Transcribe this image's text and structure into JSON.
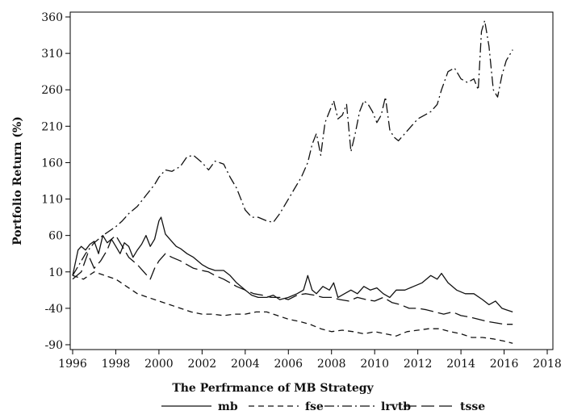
{
  "chart_data": {
    "type": "line",
    "title": "",
    "xlabel": "The Perfrmance of MB Strategy",
    "ylabel": "Portfolio Return (%)",
    "xlim": [
      1996,
      2018
    ],
    "ylim": [
      -90,
      360
    ],
    "x_ticks": [
      1996,
      1998,
      2000,
      2002,
      2004,
      2006,
      2008,
      2010,
      2012,
      2014,
      2016,
      2018
    ],
    "y_ticks": [
      -90,
      -40,
      10,
      60,
      110,
      160,
      210,
      260,
      310,
      360
    ],
    "grid": false,
    "legend_position": "bottom",
    "series": [
      {
        "name": "mb",
        "dash": "solid",
        "x": [
          1996.0,
          1996.25,
          1996.4,
          1996.6,
          1996.8,
          1997.0,
          1997.2,
          1997.4,
          1997.6,
          1997.8,
          1998.0,
          1998.2,
          1998.4,
          1998.6,
          1998.8,
          1999.0,
          1999.2,
          1999.4,
          1999.6,
          1999.8,
          2000.0,
          2000.1,
          2000.3,
          2000.5,
          2000.8,
          2001.0,
          2001.3,
          2001.6,
          2002.0,
          2002.3,
          2002.6,
          2003.0,
          2003.3,
          2003.6,
          2004.0,
          2004.3,
          2004.6,
          2005.0,
          2005.3,
          2005.6,
          2006.0,
          2006.4,
          2006.7,
          2006.9,
          2007.1,
          2007.3,
          2007.6,
          2007.9,
          2008.1,
          2008.3,
          2008.6,
          2008.9,
          2009.2,
          2009.5,
          2009.8,
          2010.1,
          2010.4,
          2010.7,
          2011.0,
          2011.4,
          2011.8,
          2012.2,
          2012.6,
          2012.9,
          2013.1,
          2013.4,
          2013.8,
          2014.2,
          2014.6,
          2015.0,
          2015.3,
          2015.6,
          2015.9,
          2016.1,
          2016.4
        ],
        "y": [
          5,
          40,
          45,
          40,
          48,
          52,
          35,
          60,
          50,
          55,
          45,
          35,
          50,
          45,
          30,
          40,
          48,
          60,
          45,
          55,
          80,
          85,
          62,
          55,
          45,
          42,
          35,
          30,
          20,
          15,
          12,
          12,
          5,
          -5,
          -15,
          -22,
          -25,
          -25,
          -22,
          -28,
          -25,
          -20,
          -15,
          5,
          -15,
          -20,
          -10,
          -15,
          -5,
          -25,
          -20,
          -15,
          -20,
          -10,
          -15,
          -12,
          -20,
          -25,
          -15,
          -15,
          -10,
          -5,
          5,
          0,
          8,
          -5,
          -15,
          -20,
          -20,
          -28,
          -35,
          -30,
          -40,
          -42,
          -45
        ]
      },
      {
        "name": "fse",
        "dash": "dashed",
        "x": [
          1996.0,
          1996.5,
          1997.0,
          1997.5,
          1998.0,
          1998.5,
          1999.0,
          1999.5,
          2000.0,
          2000.5,
          2001.0,
          2001.5,
          2002.0,
          2002.5,
          2003.0,
          2003.5,
          2004.0,
          2004.5,
          2005.0,
          2005.5,
          2006.0,
          2006.5,
          2007.0,
          2007.5,
          2008.0,
          2008.5,
          2009.0,
          2009.5,
          2010.0,
          2010.5,
          2011.0,
          2011.5,
          2012.0,
          2012.5,
          2013.0,
          2013.5,
          2014.0,
          2014.5,
          2015.0,
          2015.5,
          2016.0,
          2016.4
        ],
        "y": [
          5,
          0,
          10,
          5,
          0,
          -10,
          -20,
          -25,
          -30,
          -35,
          -40,
          -45,
          -48,
          -48,
          -50,
          -48,
          -48,
          -45,
          -45,
          -50,
          -55,
          -58,
          -62,
          -68,
          -72,
          -70,
          -72,
          -75,
          -72,
          -75,
          -78,
          -72,
          -70,
          -68,
          -68,
          -72,
          -75,
          -80,
          -80,
          -82,
          -85,
          -88
        ]
      },
      {
        "name": "lrvtb",
        "dash": "dashdot",
        "x": [
          1996.0,
          1996.3,
          1996.6,
          1997.0,
          1997.4,
          1997.8,
          1998.0,
          1998.3,
          1998.6,
          1999.0,
          1999.4,
          1999.8,
          2000.0,
          2000.3,
          2000.6,
          2001.0,
          2001.3,
          2001.6,
          2002.0,
          2002.3,
          2002.6,
          2003.0,
          2003.3,
          2003.6,
          2004.0,
          2004.3,
          2004.6,
          2005.0,
          2005.3,
          2005.6,
          2006.0,
          2006.3,
          2006.6,
          2006.9,
          2007.1,
          2007.3,
          2007.5,
          2007.7,
          2007.9,
          2008.1,
          2008.3,
          2008.5,
          2008.7,
          2008.9,
          2009.1,
          2009.3,
          2009.5,
          2009.7,
          2009.9,
          2010.1,
          2010.3,
          2010.5,
          2010.7,
          2010.9,
          2011.1,
          2011.4,
          2011.7,
          2012.0,
          2012.3,
          2012.6,
          2012.9,
          2013.1,
          2013.4,
          2013.7,
          2014.0,
          2014.3,
          2014.6,
          2014.8,
          2014.95,
          2015.1,
          2015.3,
          2015.5,
          2015.7,
          2015.9,
          2016.1,
          2016.4
        ],
        "y": [
          5,
          20,
          35,
          50,
          60,
          68,
          72,
          80,
          90,
          100,
          115,
          130,
          140,
          150,
          148,
          155,
          168,
          170,
          160,
          150,
          162,
          158,
          140,
          125,
          95,
          85,
          85,
          80,
          78,
          90,
          110,
          125,
          140,
          160,
          185,
          200,
          170,
          215,
          230,
          245,
          220,
          225,
          240,
          175,
          200,
          230,
          245,
          240,
          230,
          215,
          225,
          250,
          205,
          195,
          190,
          200,
          210,
          220,
          225,
          230,
          240,
          260,
          285,
          290,
          275,
          270,
          275,
          260,
          340,
          355,
          320,
          260,
          250,
          280,
          300,
          315
        ]
      },
      {
        "name": "tsse",
        "dash": "longdash",
        "x": [
          1996.0,
          1996.4,
          1996.7,
          1997.0,
          1997.3,
          1997.6,
          1997.8,
          1998.0,
          1998.3,
          1998.6,
          1999.0,
          1999.3,
          1999.6,
          1999.8,
          2000.0,
          2000.3,
          2000.6,
          2001.0,
          2001.3,
          2001.6,
          2002.0,
          2002.3,
          2002.6,
          2003.0,
          2003.3,
          2003.6,
          2004.0,
          2004.4,
          2004.8,
          2005.2,
          2005.6,
          2006.0,
          2006.4,
          2006.8,
          2007.2,
          2007.6,
          2008.0,
          2008.4,
          2008.8,
          2009.2,
          2009.6,
          2010.0,
          2010.4,
          2010.8,
          2011.2,
          2011.6,
          2012.0,
          2012.4,
          2012.8,
          2013.2,
          2013.6,
          2014.0,
          2014.4,
          2014.8,
          2015.2,
          2015.6,
          2016.0,
          2016.4
        ],
        "y": [
          0,
          10,
          35,
          15,
          25,
          40,
          55,
          60,
          45,
          30,
          20,
          10,
          0,
          15,
          25,
          35,
          30,
          25,
          20,
          15,
          12,
          10,
          5,
          0,
          -5,
          -10,
          -15,
          -20,
          -22,
          -25,
          -25,
          -28,
          -22,
          -20,
          -22,
          -25,
          -25,
          -28,
          -30,
          -25,
          -28,
          -30,
          -25,
          -32,
          -35,
          -40,
          -40,
          -42,
          -45,
          -48,
          -45,
          -50,
          -52,
          -55,
          -58,
          -60,
          -62,
          -62
        ]
      }
    ]
  }
}
